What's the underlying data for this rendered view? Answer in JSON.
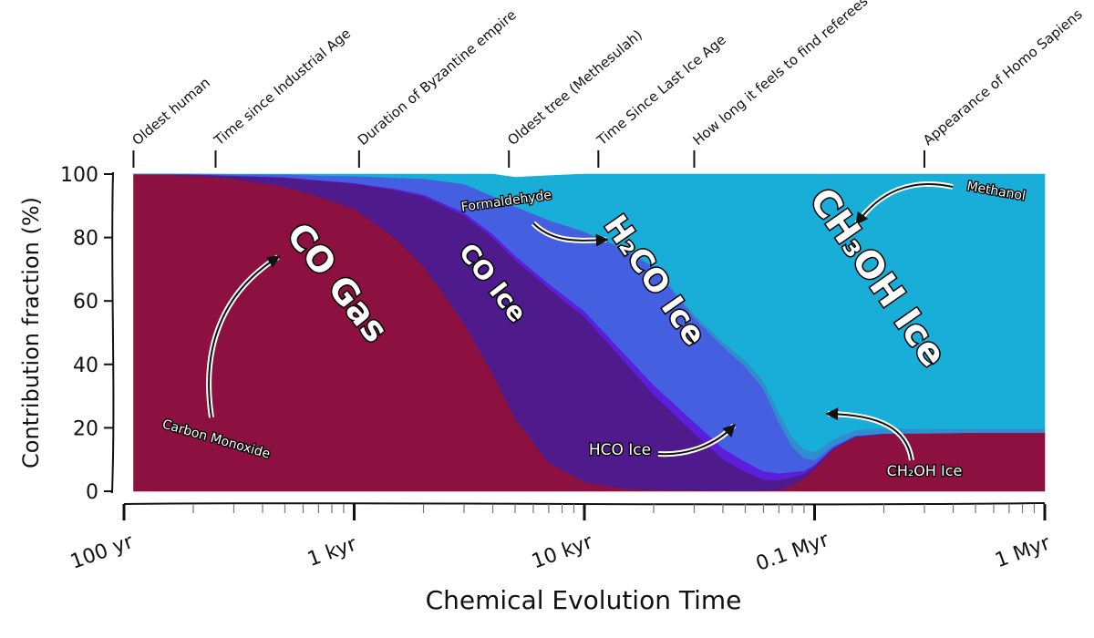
{
  "chart_data": {
    "type": "area",
    "stacked": true,
    "x_scale": "log",
    "x_unit": "yr",
    "xlim": [
      100,
      1000000
    ],
    "ylim": [
      0,
      100
    ],
    "xlabel": "Chemical Evolution Time",
    "ylabel": "Contribution fraction (%)",
    "x_ticks": [
      {
        "value": 100,
        "label": "100 yr"
      },
      {
        "value": 1000,
        "label": "1 kyr"
      },
      {
        "value": 10000,
        "label": "10 kyr"
      },
      {
        "value": 100000,
        "label": "0.1 Myr"
      },
      {
        "value": 1000000,
        "label": "1 Myr"
      }
    ],
    "y_ticks": [
      0,
      20,
      40,
      60,
      80,
      100
    ],
    "x": [
      110,
      150,
      200,
      300,
      500,
      700,
      1000,
      1500,
      2000,
      3000,
      4000,
      5000,
      7000,
      10000,
      15000,
      20000,
      30000,
      40000,
      50000,
      60000,
      70000,
      80000,
      90000,
      100000,
      120000,
      150000,
      200000,
      300000,
      500000,
      1000000
    ],
    "series": [
      {
        "name": "CO Gas",
        "color": "#8c1140",
        "values": [
          100,
          99.8,
          99.5,
          98.5,
          96,
          93,
          89,
          80,
          71,
          53,
          37,
          23,
          9,
          3,
          0.8,
          0.5,
          0.3,
          0.2,
          0.2,
          0.2,
          0.5,
          2,
          4,
          7,
          13,
          17,
          18,
          18.3,
          18.5,
          18.5
        ]
      },
      {
        "name": "CO Ice",
        "color": "#4e1a8c",
        "values": [
          0,
          0.2,
          0.4,
          1,
          3,
          5,
          8,
          15,
          22,
          34,
          43,
          50,
          55,
          52,
          40,
          30,
          18,
          10,
          6,
          3.5,
          3,
          2.5,
          1.5,
          0.8,
          0.5,
          0.2,
          0.1,
          0,
          0,
          0
        ]
      },
      {
        "name": "HCO Ice",
        "color": "#5b1fdc",
        "values": [
          0,
          0,
          0,
          0,
          0,
          0.1,
          0.2,
          0.4,
          0.6,
          0.9,
          1.1,
          1.3,
          1.5,
          1.8,
          2.4,
          3,
          3.5,
          3.4,
          3.1,
          2.6,
          2.2,
          1.6,
          1,
          0.6,
          0.3,
          0.2,
          0.1,
          0,
          0,
          0
        ]
      },
      {
        "name": "H2CO Ice",
        "color": "#4460e0",
        "values": [
          0,
          0,
          0.1,
          0.4,
          0.9,
          1.5,
          2.2,
          3.5,
          5,
          9,
          12,
          15.5,
          20,
          25,
          33,
          37,
          33,
          32,
          30,
          26,
          16,
          8,
          4,
          1.5,
          0.5,
          0.2,
          0.1,
          0,
          0,
          0
        ]
      },
      {
        "name": "CH2OH Ice",
        "color": "#2f8fce",
        "values": [
          0,
          0,
          0,
          0,
          0,
          0,
          0,
          0,
          0,
          0,
          0,
          0,
          0,
          0.2,
          0.3,
          0.5,
          1,
          1.5,
          2,
          2.5,
          3,
          3,
          2.8,
          2.5,
          2,
          1.8,
          1.6,
          1.4,
          1.3,
          1.3
        ]
      },
      {
        "name": "CH3OH Ice",
        "color": "#19aed8",
        "values": [
          0,
          0,
          0,
          0.1,
          0.1,
          0.4,
          0.6,
          1.1,
          1.4,
          3.1,
          6.9,
          9.2,
          14,
          18,
          23.5,
          29,
          44.2,
          53,
          58.7,
          65.2,
          75.3,
          82.9,
          86.7,
          88.6,
          83.7,
          80.6,
          80.2,
          80.3,
          80.2,
          80.2
        ]
      }
    ],
    "milestones": [
      {
        "x": 110,
        "label": "Oldest human"
      },
      {
        "x": 250,
        "label": "Time since Industrial Age"
      },
      {
        "x": 1050,
        "label": "Duration of Byzantine empire"
      },
      {
        "x": 4700,
        "label": "Oldest tree (Methesulah)"
      },
      {
        "x": 11500,
        "label": "Time Since Last Ice Age"
      },
      {
        "x": 30000,
        "label": "How long it feels to find referees"
      },
      {
        "x": 300000,
        "label": "Appearance of Homo Sapiens"
      }
    ],
    "annotations": {
      "big": [
        "CO Gas",
        "CO Ice",
        "H₂CO Ice",
        "CH₃OH Ice"
      ],
      "small": [
        "Carbon Monoxide",
        "Formaldehyde",
        "Methanol",
        "HCO Ice",
        "CH₂OH Ice"
      ]
    }
  }
}
